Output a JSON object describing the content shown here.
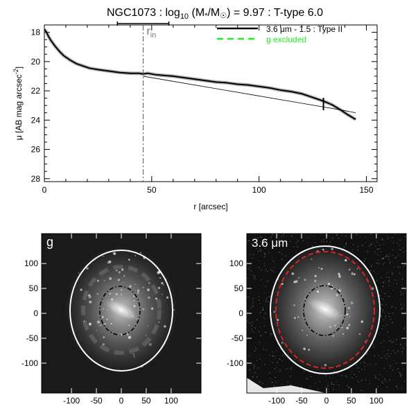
{
  "figure": {
    "title_prefix": "NGC1073 : log",
    "title_sub": "10",
    "title_mid": " (M",
    "title_star": "*",
    "title_slash": "/M",
    "title_sun": "☉",
    "title_suffix": ") = 9.97 : T-type 6.0"
  },
  "chart_data": [
    {
      "type": "line",
      "xlabel": "r [arcsec]",
      "ylabel": "μ [AB mag arcsec",
      "ylabel_sup": "-2",
      "ylabel_close": "]",
      "xlim": [
        0,
        155
      ],
      "ylim": [
        28.2,
        17.5
      ],
      "y_inverted": true,
      "xticks": [
        0,
        50,
        100,
        150
      ],
      "yticks": [
        18,
        20,
        22,
        24,
        26,
        28
      ],
      "r_in": 46,
      "r_in_label": "r",
      "r_in_sub": "in",
      "r_in_errorbar": [
        34,
        58
      ],
      "break_marker": {
        "x": 130,
        "y": 22.9
      },
      "legend": {
        "position": "top-right",
        "entries": [
          {
            "label": "3.6 μm - 1.5 : Type II",
            "color": "#000000",
            "style": "solid"
          },
          {
            "label": "g excluded",
            "color": "#22ee22",
            "style": "dashed"
          }
        ]
      },
      "series": [
        {
          "name": "3.6 μm - 1.5 : Type II",
          "x": [
            0,
            1,
            2,
            3,
            5,
            7,
            9,
            12,
            15,
            18,
            21,
            25,
            30,
            35,
            40,
            44,
            46,
            48,
            52,
            56,
            60,
            65,
            70,
            75,
            80,
            85,
            90,
            95,
            100,
            105,
            110,
            115,
            120,
            125,
            130,
            134,
            138,
            141,
            145
          ],
          "y": [
            17.8,
            18.0,
            18.3,
            18.55,
            18.95,
            19.3,
            19.6,
            19.9,
            20.15,
            20.3,
            20.45,
            20.55,
            20.65,
            20.75,
            20.8,
            20.8,
            20.85,
            20.8,
            20.9,
            20.95,
            21.0,
            21.1,
            21.2,
            21.3,
            21.4,
            21.45,
            21.55,
            21.6,
            21.7,
            21.8,
            21.95,
            22.05,
            22.2,
            22.45,
            22.7,
            22.95,
            23.3,
            23.6,
            23.95
          ]
        },
        {
          "name": "",
          "x": [
            46,
            60,
            80,
            100,
            120,
            140,
            145
          ],
          "y": [
            21.0,
            21.35,
            21.85,
            22.35,
            22.85,
            23.35,
            23.5
          ]
        }
      ]
    },
    {
      "type": "image",
      "band_label": "g",
      "xticks": [
        -100,
        -50,
        0,
        50,
        100
      ],
      "yticks": [
        100,
        50,
        0,
        -50,
        -100
      ],
      "xlim": [
        -160,
        160
      ],
      "ylim": [
        -160,
        160
      ]
    },
    {
      "type": "image",
      "band_label": "3.6 μm",
      "xticks": [
        -100,
        -50,
        0,
        50,
        100
      ],
      "yticks": [
        100,
        50,
        0,
        -50,
        -100
      ],
      "xlim": [
        -160,
        160
      ],
      "ylim": [
        -160,
        160
      ]
    }
  ]
}
